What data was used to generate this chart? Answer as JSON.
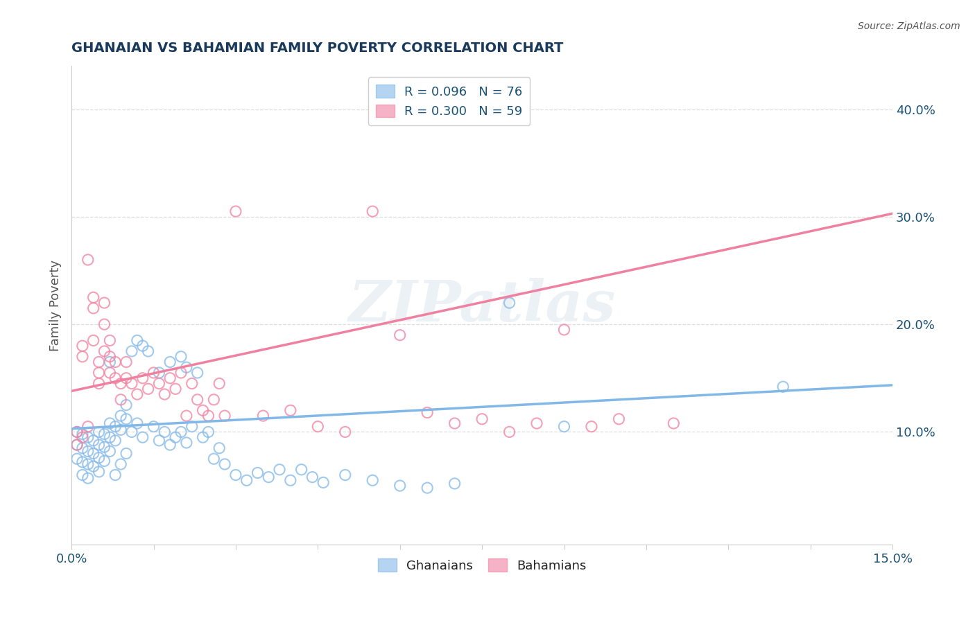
{
  "title": "GHANAIAN VS BAHAMIAN FAMILY POVERTY CORRELATION CHART",
  "source_text": "Source: ZipAtlas.com",
  "ylabel_label": "Family Poverty",
  "xlim": [
    0.0,
    0.15
  ],
  "ylim": [
    -0.005,
    0.44
  ],
  "yticks": [
    0.1,
    0.2,
    0.3,
    0.4
  ],
  "ytick_labels": [
    "10.0%",
    "20.0%",
    "30.0%",
    "40.0%"
  ],
  "watermark": "ZIPatlas",
  "legend_label1": "R = 0.096   N = 76",
  "legend_label2": "R = 0.300   N = 59",
  "legend_group1": "Ghanaians",
  "legend_group2": "Bahamians",
  "color_blue": "#82b8e8",
  "color_pink": "#f080a0",
  "color_title": "#1a3a5c",
  "color_source": "#555555",
  "color_axis_label": "#555555",
  "color_tick": "#1a5276",
  "color_grid": "#dddddd",
  "blue_intercept": 0.103,
  "blue_slope": 0.27,
  "pink_intercept": 0.138,
  "pink_slope": 1.1,
  "blue_points": [
    [
      0.001,
      0.1
    ],
    [
      0.001,
      0.088
    ],
    [
      0.001,
      0.075
    ],
    [
      0.002,
      0.098
    ],
    [
      0.002,
      0.085
    ],
    [
      0.002,
      0.072
    ],
    [
      0.002,
      0.06
    ],
    [
      0.003,
      0.095
    ],
    [
      0.003,
      0.082
    ],
    [
      0.003,
      0.07
    ],
    [
      0.003,
      0.057
    ],
    [
      0.004,
      0.092
    ],
    [
      0.004,
      0.08
    ],
    [
      0.004,
      0.068
    ],
    [
      0.005,
      0.1
    ],
    [
      0.005,
      0.088
    ],
    [
      0.005,
      0.076
    ],
    [
      0.005,
      0.063
    ],
    [
      0.006,
      0.098
    ],
    [
      0.006,
      0.086
    ],
    [
      0.006,
      0.073
    ],
    [
      0.007,
      0.108
    ],
    [
      0.007,
      0.095
    ],
    [
      0.007,
      0.082
    ],
    [
      0.007,
      0.165
    ],
    [
      0.008,
      0.105
    ],
    [
      0.008,
      0.092
    ],
    [
      0.008,
      0.06
    ],
    [
      0.009,
      0.115
    ],
    [
      0.009,
      0.102
    ],
    [
      0.009,
      0.07
    ],
    [
      0.01,
      0.125
    ],
    [
      0.01,
      0.112
    ],
    [
      0.01,
      0.08
    ],
    [
      0.011,
      0.175
    ],
    [
      0.011,
      0.1
    ],
    [
      0.012,
      0.185
    ],
    [
      0.012,
      0.108
    ],
    [
      0.013,
      0.18
    ],
    [
      0.013,
      0.095
    ],
    [
      0.014,
      0.175
    ],
    [
      0.015,
      0.105
    ],
    [
      0.016,
      0.155
    ],
    [
      0.016,
      0.092
    ],
    [
      0.017,
      0.1
    ],
    [
      0.018,
      0.165
    ],
    [
      0.018,
      0.088
    ],
    [
      0.019,
      0.095
    ],
    [
      0.02,
      0.17
    ],
    [
      0.02,
      0.1
    ],
    [
      0.021,
      0.16
    ],
    [
      0.021,
      0.09
    ],
    [
      0.022,
      0.105
    ],
    [
      0.023,
      0.155
    ],
    [
      0.024,
      0.095
    ],
    [
      0.025,
      0.1
    ],
    [
      0.026,
      0.075
    ],
    [
      0.027,
      0.085
    ],
    [
      0.028,
      0.07
    ],
    [
      0.03,
      0.06
    ],
    [
      0.032,
      0.055
    ],
    [
      0.034,
      0.062
    ],
    [
      0.036,
      0.058
    ],
    [
      0.038,
      0.065
    ],
    [
      0.04,
      0.055
    ],
    [
      0.042,
      0.065
    ],
    [
      0.044,
      0.058
    ],
    [
      0.046,
      0.053
    ],
    [
      0.05,
      0.06
    ],
    [
      0.055,
      0.055
    ],
    [
      0.06,
      0.05
    ],
    [
      0.065,
      0.048
    ],
    [
      0.07,
      0.052
    ],
    [
      0.08,
      0.22
    ],
    [
      0.09,
      0.105
    ],
    [
      0.13,
      0.142
    ]
  ],
  "pink_points": [
    [
      0.001,
      0.1
    ],
    [
      0.001,
      0.088
    ],
    [
      0.002,
      0.095
    ],
    [
      0.002,
      0.18
    ],
    [
      0.002,
      0.17
    ],
    [
      0.003,
      0.26
    ],
    [
      0.003,
      0.105
    ],
    [
      0.004,
      0.225
    ],
    [
      0.004,
      0.215
    ],
    [
      0.004,
      0.185
    ],
    [
      0.005,
      0.165
    ],
    [
      0.005,
      0.155
    ],
    [
      0.005,
      0.145
    ],
    [
      0.006,
      0.22
    ],
    [
      0.006,
      0.2
    ],
    [
      0.006,
      0.175
    ],
    [
      0.007,
      0.185
    ],
    [
      0.007,
      0.17
    ],
    [
      0.007,
      0.155
    ],
    [
      0.008,
      0.165
    ],
    [
      0.008,
      0.15
    ],
    [
      0.009,
      0.145
    ],
    [
      0.009,
      0.13
    ],
    [
      0.01,
      0.165
    ],
    [
      0.01,
      0.15
    ],
    [
      0.011,
      0.145
    ],
    [
      0.012,
      0.135
    ],
    [
      0.013,
      0.15
    ],
    [
      0.014,
      0.14
    ],
    [
      0.015,
      0.155
    ],
    [
      0.016,
      0.145
    ],
    [
      0.017,
      0.135
    ],
    [
      0.018,
      0.15
    ],
    [
      0.019,
      0.14
    ],
    [
      0.02,
      0.155
    ],
    [
      0.021,
      0.115
    ],
    [
      0.022,
      0.145
    ],
    [
      0.023,
      0.13
    ],
    [
      0.024,
      0.12
    ],
    [
      0.025,
      0.115
    ],
    [
      0.026,
      0.13
    ],
    [
      0.027,
      0.145
    ],
    [
      0.028,
      0.115
    ],
    [
      0.03,
      0.305
    ],
    [
      0.035,
      0.115
    ],
    [
      0.04,
      0.12
    ],
    [
      0.045,
      0.105
    ],
    [
      0.05,
      0.1
    ],
    [
      0.055,
      0.305
    ],
    [
      0.06,
      0.19
    ],
    [
      0.065,
      0.118
    ],
    [
      0.07,
      0.108
    ],
    [
      0.075,
      0.112
    ],
    [
      0.08,
      0.1
    ],
    [
      0.085,
      0.108
    ],
    [
      0.09,
      0.195
    ],
    [
      0.095,
      0.105
    ],
    [
      0.1,
      0.112
    ],
    [
      0.11,
      0.108
    ]
  ]
}
